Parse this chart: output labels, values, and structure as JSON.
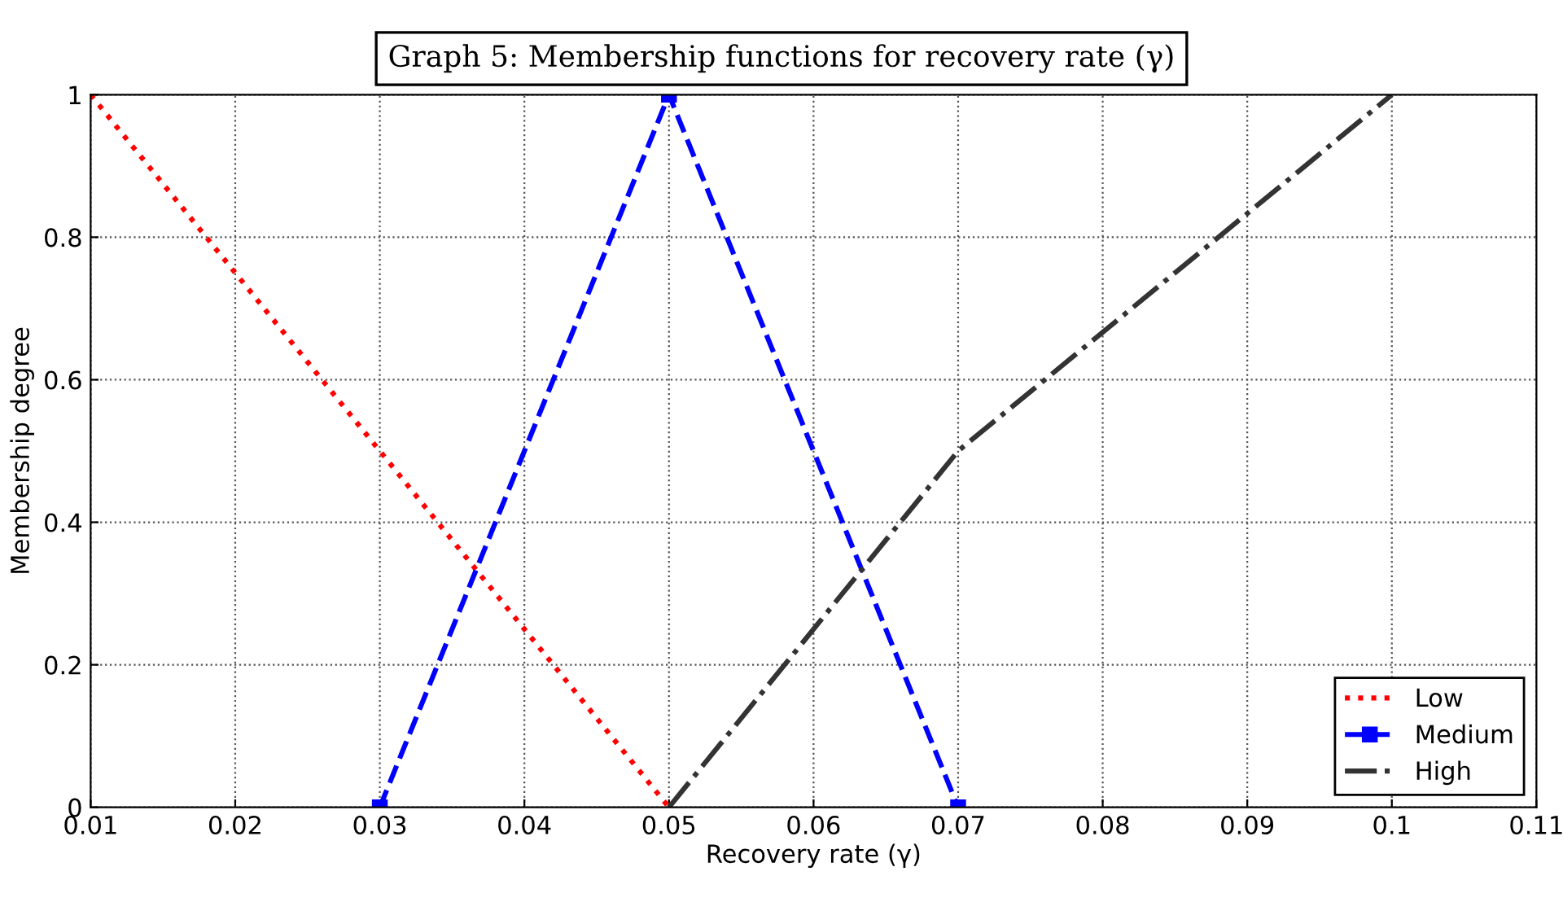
{
  "chart_data": {
    "type": "line",
    "title": "Graph 5: Membership functions for recovery rate (γ)",
    "xlabel": "Recovery rate (γ)",
    "ylabel": "Membership degree",
    "series": [
      {
        "name": "Low",
        "color": "#ff0000",
        "x": [
          0.01,
          0.05
        ],
        "values": [
          1,
          0
        ],
        "line_style": "dotted",
        "marker": "none"
      },
      {
        "name": "Medium",
        "color": "#0000ff",
        "x": [
          0.03,
          0.05,
          0.07
        ],
        "values": [
          0,
          1,
          0
        ],
        "line_style": "dashed",
        "marker": "square"
      },
      {
        "name": "High",
        "color": "#333333",
        "x": [
          0.05,
          0.07,
          0.1
        ],
        "values": [
          0,
          0.5,
          1
        ],
        "line_style": "dashdot",
        "marker": "none"
      }
    ],
    "xlim": [
      0.01,
      0.11
    ],
    "xticks": [
      0.01,
      0.02,
      0.03,
      0.04,
      0.05,
      0.06,
      0.07,
      0.08,
      0.09,
      0.1,
      0.11
    ],
    "ylim": [
      0,
      1
    ],
    "yticks": [
      0,
      0.2,
      0.4,
      0.6,
      0.8,
      1
    ],
    "grid": true,
    "legend": "bottom right"
  }
}
